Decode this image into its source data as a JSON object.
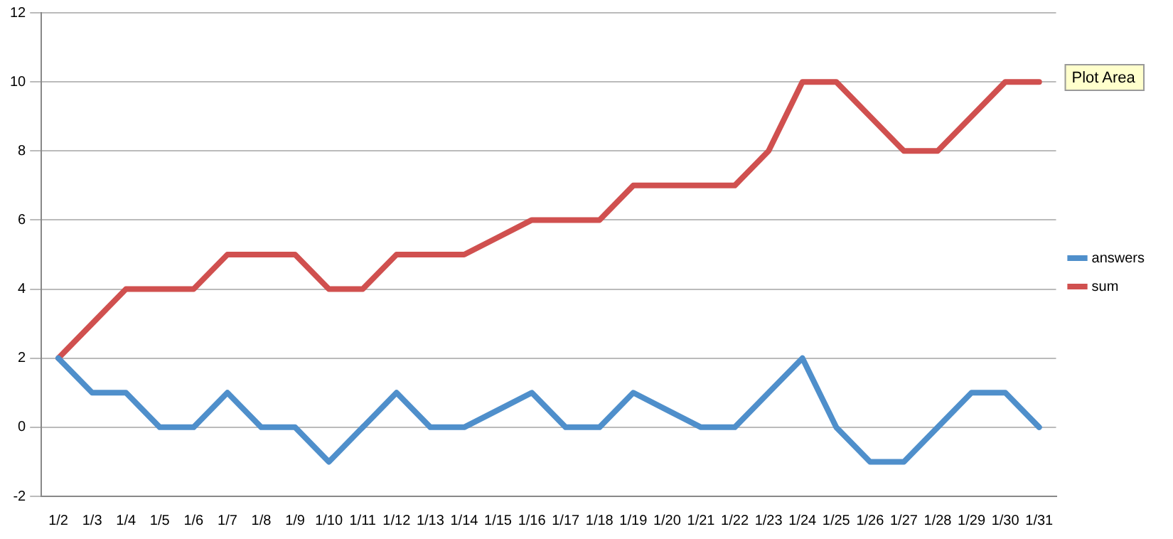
{
  "chart_data": {
    "type": "line",
    "categories": [
      "1/2",
      "1/3",
      "1/4",
      "1/5",
      "1/6",
      "1/7",
      "1/8",
      "1/9",
      "1/10",
      "1/11",
      "1/12",
      "1/13",
      "1/14",
      "1/15",
      "1/16",
      "1/17",
      "1/18",
      "1/19",
      "1/20",
      "1/21",
      "1/22",
      "1/23",
      "1/24",
      "1/25",
      "1/26",
      "1/27",
      "1/28",
      "1/29",
      "1/30",
      "1/31"
    ],
    "series": [
      {
        "name": "answers",
        "color": "#4f8fcb",
        "values": [
          2,
          1,
          1,
          0,
          0,
          1,
          0,
          0,
          -1,
          0,
          1,
          0,
          0,
          0.5,
          1,
          0,
          0,
          1,
          0.5,
          0,
          0,
          1,
          2,
          0,
          -1,
          -1,
          0,
          1,
          1,
          0
        ]
      },
      {
        "name": "sum",
        "color": "#d0504f",
        "values": [
          2,
          3,
          4,
          4,
          4,
          5,
          5,
          5,
          4,
          4,
          5,
          5,
          5,
          5.5,
          6,
          6,
          6,
          7,
          7,
          7,
          7,
          8,
          10,
          10,
          9,
          8,
          8,
          9,
          10,
          10
        ]
      }
    ],
    "ylim": [
      -2,
      12
    ],
    "yticks": [
      -2,
      0,
      2,
      4,
      6,
      8,
      10,
      12
    ],
    "grid": "y",
    "legend": "right",
    "marker": "none",
    "line_style": "solid",
    "annotations": [
      "Plot Area"
    ]
  }
}
